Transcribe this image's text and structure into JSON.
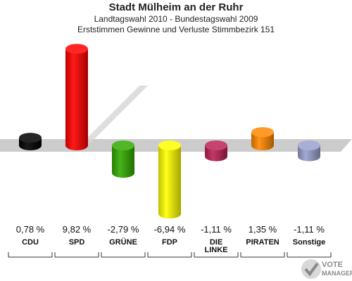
{
  "header": {
    "title": "Stadt Mülheim an der Ruhr",
    "subtitle1": "Landtagswahl 2010 - Bundestagswahl 2009",
    "subtitle2": "Erststimmen Gewinne und Verluste Stimmbezirk 151"
  },
  "chart_data": {
    "type": "bar",
    "title": "Stadt Mülheim an der Ruhr",
    "subtitle": "Landtagswahl 2010 - Bundestagswahl 2009 / Erststimmen Gewinne und Verluste Stimmbezirk 151",
    "categories": [
      "CDU",
      "SPD",
      "GRÜNE",
      "FDP",
      "DIE LINKE",
      "PIRATEN",
      "Sonstige"
    ],
    "category_lines": [
      [
        "CDU"
      ],
      [
        "SPD"
      ],
      [
        "GRÜNE"
      ],
      [
        "FDP"
      ],
      [
        "DIE",
        "LINKE"
      ],
      [
        "PIRATEN"
      ],
      [
        "Sonstige"
      ]
    ],
    "values": [
      0.78,
      9.82,
      -2.79,
      -6.94,
      -1.11,
      1.35,
      -1.11
    ],
    "value_labels": [
      "0,78 %",
      "9,82 %",
      "-2,79 %",
      "-6,94 %",
      "-1,11 %",
      "1,35 %",
      "-1,11 %"
    ],
    "colors": [
      "#000000",
      "#ff0000",
      "#33aa00",
      "#ffff00",
      "#bb2255",
      "#ff8800",
      "#99a0cc"
    ],
    "ylim": [
      -10,
      10
    ],
    "grid": false,
    "legend": "none"
  },
  "logo": {
    "text": "VOTE MANAGER"
  }
}
